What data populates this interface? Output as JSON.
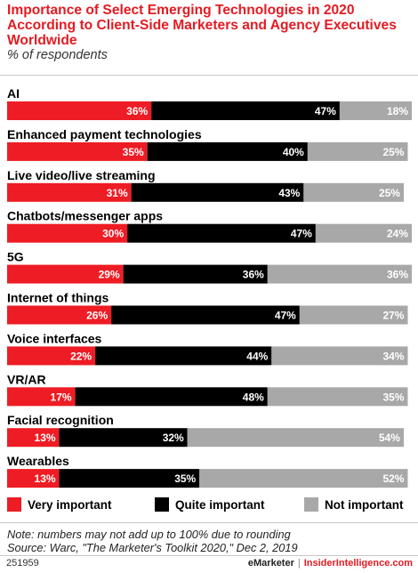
{
  "title": "Importance of Select Emerging Technologies in 2020 According to Client-Side Marketers and Agency Executives Worldwide",
  "subtitle": "% of respondents",
  "colors": {
    "very": "#ee1c24",
    "quite": "#000000",
    "not": "#a8a8a8",
    "title": "#e31b23"
  },
  "chart_data": {
    "type": "bar",
    "orientation": "horizontal",
    "stacked": true,
    "xlim": [
      0,
      101
    ],
    "categories": [
      "AI",
      "Enhanced payment technologies",
      "Live video/live streaming",
      "Chatbots/messenger apps",
      "5G",
      "Internet of things",
      "Voice interfaces",
      "VR/AR",
      "Facial recognition",
      "Wearables"
    ],
    "series": [
      {
        "name": "Very important",
        "values": [
          36,
          35,
          31,
          30,
          29,
          26,
          22,
          17,
          13,
          13
        ]
      },
      {
        "name": "Quite important",
        "values": [
          47,
          40,
          43,
          47,
          36,
          47,
          44,
          48,
          32,
          35
        ]
      },
      {
        "name": "Not important",
        "values": [
          18,
          25,
          25,
          24,
          36,
          27,
          34,
          35,
          54,
          52
        ]
      }
    ],
    "value_suffix": "%",
    "legend_position": "bottom"
  },
  "legend": [
    "Very important",
    "Quite important",
    "Not important"
  ],
  "note": "Note: numbers may not add up to 100% due to rounding",
  "source": "Source: Warc, \"The Marketer's Toolkit 2020,\" Dec 2, 2019",
  "footer": {
    "chart_id": "251959",
    "brand": "eMarketer",
    "separator": "|",
    "brand2": "InsiderIntelligence.com"
  }
}
